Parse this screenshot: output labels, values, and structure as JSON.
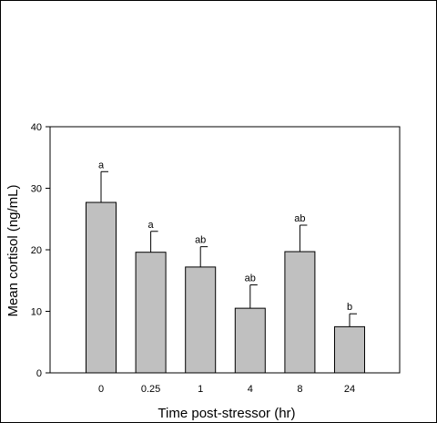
{
  "chart_data": {
    "type": "bar",
    "categories": [
      "0",
      "0.25",
      "1",
      "4",
      "8",
      "24"
    ],
    "values": [
      27.7,
      19.6,
      17.2,
      10.5,
      19.7,
      7.5
    ],
    "errors": [
      5.0,
      3.4,
      3.3,
      3.8,
      4.3,
      2.1
    ],
    "significance": [
      "a",
      "a",
      "ab",
      "ab",
      "ab",
      "b"
    ],
    "ylim": [
      0,
      40
    ],
    "yticks": [
      0,
      10,
      20,
      30,
      40
    ],
    "xlabel": "Time post-stressor (hr)",
    "ylabel": "Mean cortisol (ng/mL)",
    "bar_color": "#c0c0c0",
    "grid": false
  }
}
